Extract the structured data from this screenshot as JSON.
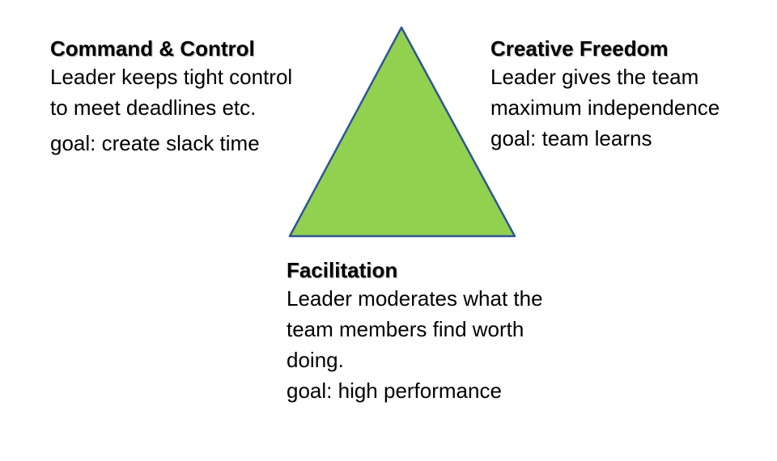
{
  "diagram": {
    "fill_color": "#92d050",
    "stroke_color": "#2f5597",
    "corners": {
      "command": {
        "title": "Command & Control",
        "lines": [
          "Leader keeps tight control",
          "to meet deadlines etc."
        ],
        "goal": "goal: create slack time"
      },
      "creative": {
        "title": "Creative Freedom",
        "lines": [
          "Leader gives the team",
          "maximum independence"
        ],
        "goal": "goal: team learns"
      },
      "facilitation": {
        "title": "Facilitation",
        "lines": [
          "Leader moderates what the",
          "team members find worth",
          "doing."
        ],
        "goal": "goal: high performance"
      }
    }
  }
}
